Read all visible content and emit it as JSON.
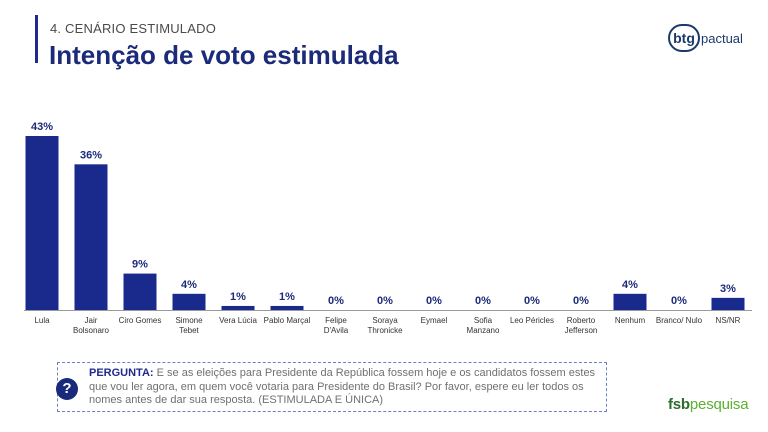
{
  "header": {
    "section": "4. CENÁRIO ESTIMULADO",
    "title": "Intenção de voto estimulada"
  },
  "logos": {
    "btg_mark": "btg",
    "btg_suffix": "pactual",
    "fsb_part1": "fsb",
    "fsb_part2": "pesquisa"
  },
  "question": {
    "label": "PERGUNTA:",
    "text": "E se as eleições para Presidente da República fossem hoje e os candidatos fossem estes que vou ler agora, em quem você votaria para Presidente do Brasil? Por favor, espere eu ler todos os nomes antes de dar sua resposta. (ESTIMULADA E ÚNICA)",
    "icon": "question-mark-icon"
  },
  "chart_data": {
    "type": "bar",
    "categories": [
      [
        "Lula"
      ],
      [
        "Jair",
        "Bolsonaro"
      ],
      [
        "Ciro Gomes"
      ],
      [
        "Simone",
        "Tebet"
      ],
      [
        "Vera Lúcia"
      ],
      [
        "Pablo Marçal"
      ],
      [
        "Felipe",
        "D'Avila"
      ],
      [
        "Soraya",
        "Thronicke"
      ],
      [
        "Eymael"
      ],
      [
        "Sofia",
        "Manzano"
      ],
      [
        "Leo Péricles"
      ],
      [
        "Roberto",
        "Jefferson"
      ],
      [
        "Nenhum"
      ],
      [
        "Branco/ Nulo"
      ],
      [
        "NS/NR"
      ]
    ],
    "values": [
      43,
      36,
      9,
      4,
      1,
      1,
      0,
      0,
      0,
      0,
      0,
      0,
      4,
      0,
      3
    ],
    "value_labels": [
      "43%",
      "36%",
      "9%",
      "4%",
      "1%",
      "1%",
      "0%",
      "0%",
      "0%",
      "0%",
      "0%",
      "0%",
      "4%",
      "0%",
      "3%"
    ],
    "unit": "%",
    "ylim": [
      0,
      43
    ],
    "grid": false,
    "bar_color": "#1a2a8c"
  }
}
